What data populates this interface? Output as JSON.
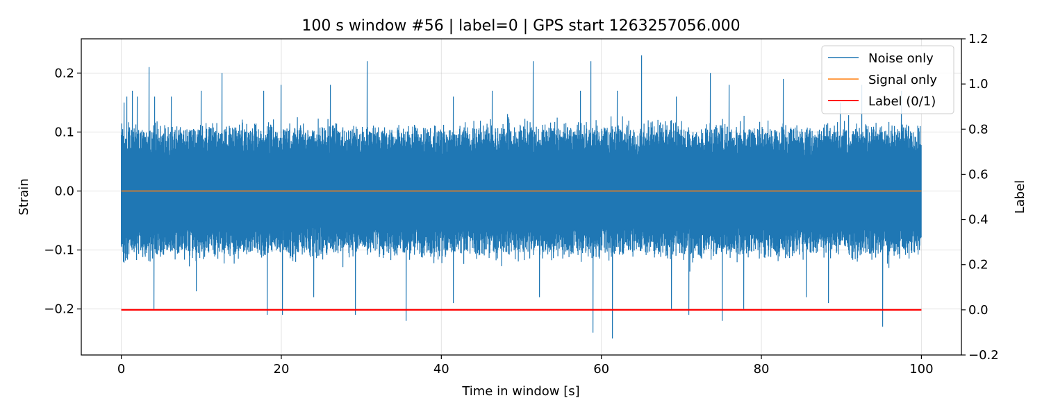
{
  "chart_data": {
    "type": "line",
    "title": "100 s window #56 | label=0 | GPS start 1263257056.000",
    "xlabel": "Time in window [s]",
    "ylabel": "Strain",
    "y2label": "Label",
    "xlim": [
      -5,
      105
    ],
    "ylim": [
      -0.278,
      0.258
    ],
    "y2lim": [
      -0.2,
      1.2
    ],
    "x_ticks": [
      0,
      20,
      40,
      60,
      80,
      100
    ],
    "x_tick_labels": [
      "0",
      "20",
      "40",
      "60",
      "80",
      "100"
    ],
    "y_ticks": [
      -0.2,
      -0.1,
      0.0,
      0.1,
      0.2
    ],
    "y_tick_labels": [
      "−0.2",
      "−0.1",
      "0.0",
      "0.1",
      "0.2"
    ],
    "y2_ticks": [
      -0.2,
      0.0,
      0.2,
      0.4,
      0.6,
      0.8,
      1.0,
      1.2
    ],
    "y2_tick_labels": [
      "−0.2",
      "0.0",
      "0.2",
      "0.4",
      "0.6",
      "0.8",
      "1.0",
      "1.2"
    ],
    "grid": true,
    "legend_position": "top-right",
    "series": [
      {
        "name": "Noise only",
        "axis": "left",
        "color": "#1f77b4",
        "x_range": [
          0,
          100
        ],
        "typical_envelope": [
          -0.1,
          0.1
        ],
        "peaks_high": [
          [
            0.4,
            0.15
          ],
          [
            0.7,
            0.16
          ],
          [
            1.4,
            0.17
          ],
          [
            2.0,
            0.16
          ],
          [
            3.5,
            0.21
          ],
          [
            4.2,
            0.16
          ],
          [
            6.3,
            0.16
          ],
          [
            10.0,
            0.17
          ],
          [
            12.6,
            0.2
          ],
          [
            17.8,
            0.17
          ],
          [
            20.0,
            0.18
          ],
          [
            26.2,
            0.18
          ],
          [
            30.8,
            0.22
          ],
          [
            41.5,
            0.16
          ],
          [
            46.4,
            0.17
          ],
          [
            51.5,
            0.22
          ],
          [
            57.4,
            0.17
          ],
          [
            58.7,
            0.22
          ],
          [
            62.0,
            0.17
          ],
          [
            65.1,
            0.23
          ],
          [
            69.4,
            0.16
          ],
          [
            73.7,
            0.2
          ],
          [
            76.0,
            0.18
          ],
          [
            82.8,
            0.19
          ],
          [
            89.9,
            0.15
          ],
          [
            92.6,
            0.18
          ],
          [
            97.5,
            0.17
          ],
          [
            99.9,
            0.11
          ]
        ],
        "peaks_low": [
          [
            0.3,
            -0.12
          ],
          [
            4.1,
            -0.2
          ],
          [
            9.4,
            -0.17
          ],
          [
            18.3,
            -0.21
          ],
          [
            20.2,
            -0.21
          ],
          [
            24.1,
            -0.18
          ],
          [
            29.3,
            -0.21
          ],
          [
            35.6,
            -0.22
          ],
          [
            41.5,
            -0.19
          ],
          [
            52.3,
            -0.18
          ],
          [
            59.0,
            -0.24
          ],
          [
            61.4,
            -0.25
          ],
          [
            68.8,
            -0.2
          ],
          [
            71.0,
            -0.21
          ],
          [
            75.1,
            -0.22
          ],
          [
            77.8,
            -0.2
          ],
          [
            85.6,
            -0.18
          ],
          [
            88.4,
            -0.19
          ],
          [
            95.2,
            -0.23
          ],
          [
            99.8,
            -0.1
          ]
        ]
      },
      {
        "name": "Signal only",
        "axis": "left",
        "color": "#ff7f0e",
        "x": [
          0,
          100
        ],
        "y": [
          0,
          0
        ]
      },
      {
        "name": "Label (0/1)",
        "axis": "right",
        "color": "#ff0000",
        "x": [
          0,
          100
        ],
        "y": [
          0,
          0
        ]
      }
    ]
  }
}
